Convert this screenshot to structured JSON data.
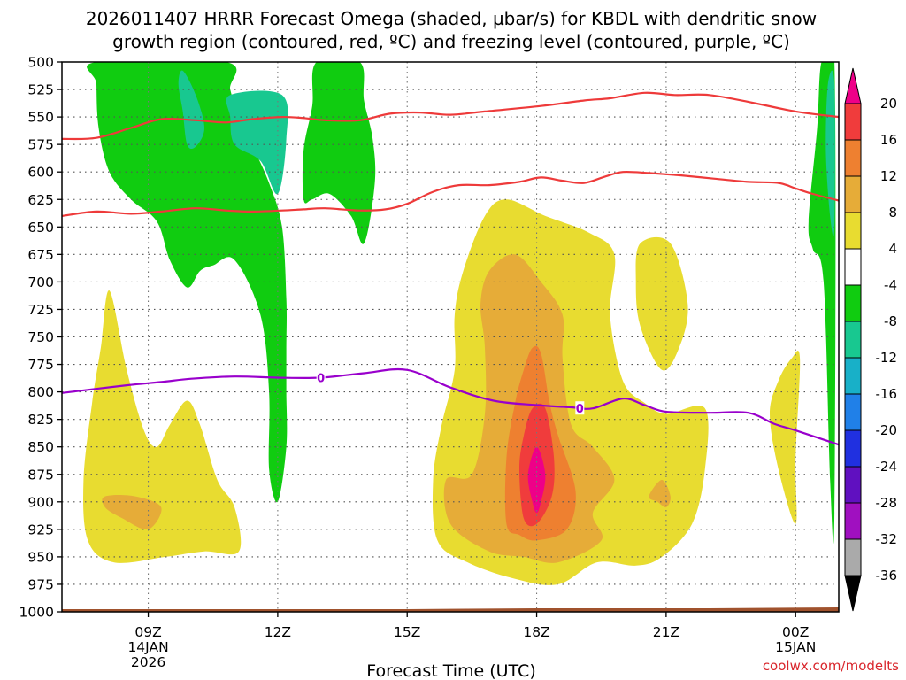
{
  "title_line1": "2026011407 HRRR Forecast Omega (shaded, µbar/s) for KBDL with dendritic snow",
  "title_line2": "growth region (contoured, red, ºC) and freezing level (contoured, purple, ºC)",
  "credit": "coolwx.com/modelts",
  "colors": {
    "dgz_contour": "#ee3a3a",
    "freezing_contour": "#9900cc",
    "ground": "#a0522d"
  },
  "chart_data": {
    "type": "heatmap",
    "title": "2026011407 HRRR Forecast Omega (shaded, µbar/s) for KBDL with dendritic snow growth region (contoured, red, ºC) and freezing level (contoured, purple, ºC)",
    "xlabel": "Forecast Time (UTC)",
    "ylabel": "",
    "xlim_hours": [
      7,
      25
    ],
    "ylim_hpa": [
      1000,
      500
    ],
    "y_ticks": [
      "500",
      "525",
      "550",
      "575",
      "600",
      "625",
      "650",
      "675",
      "700",
      "725",
      "750",
      "775",
      "800",
      "825",
      "850",
      "875",
      "900",
      "925",
      "950",
      "975",
      "1000"
    ],
    "x_ticks": [
      {
        "label": "09Z",
        "hour": 9,
        "date1": "14JAN",
        "date2": "2026"
      },
      {
        "label": "12Z",
        "hour": 12
      },
      {
        "label": "15Z",
        "hour": 15
      },
      {
        "label": "18Z",
        "hour": 18
      },
      {
        "label": "21Z",
        "hour": 21
      },
      {
        "label": "00Z",
        "hour": 24,
        "date1": "15JAN"
      }
    ],
    "colorbar": {
      "labels": [
        "20",
        "16",
        "12",
        "8",
        "4",
        "-4",
        "-8",
        "-12",
        "-16",
        "-20",
        "-24",
        "-28",
        "-32",
        "-36"
      ],
      "colors": [
        "#ee0088",
        "#f03c3c",
        "#ee8030",
        "#e6ac38",
        "#e8dc30",
        "#ffffff",
        "#10cc10",
        "#18c890",
        "#18b0c8",
        "#2080e8",
        "#2030e0",
        "#6010c0",
        "#a010c0",
        "#aaaaaa",
        "#000000"
      ]
    },
    "shaded_regions": [
      {
        "name": "green upper left",
        "omega_class": "-4 to -8",
        "color": "#10cc10",
        "points": [
          [
            7.8,
            500
          ],
          [
            10.8,
            500
          ],
          [
            10.9,
            525
          ],
          [
            11.1,
            550
          ],
          [
            11.4,
            575
          ],
          [
            11.8,
            610
          ],
          [
            12.1,
            650
          ],
          [
            12.2,
            715
          ],
          [
            12.2,
            760
          ],
          [
            12.2,
            800
          ],
          [
            12.2,
            850
          ],
          [
            12.0,
            900
          ],
          [
            11.8,
            870
          ],
          [
            11.8,
            800
          ],
          [
            11.6,
            730
          ],
          [
            11.0,
            680
          ],
          [
            10.5,
            685
          ],
          [
            10.2,
            690
          ],
          [
            9.9,
            705
          ],
          [
            9.5,
            680
          ],
          [
            9.2,
            645
          ],
          [
            8.6,
            625
          ],
          [
            8.1,
            600
          ],
          [
            7.85,
            560
          ],
          [
            7.8,
            520
          ]
        ]
      },
      {
        "name": "green upper middle",
        "omega_class": "-4 to -8",
        "color": "#10cc10",
        "points": [
          [
            12.9,
            500
          ],
          [
            13.9,
            500
          ],
          [
            14.0,
            535
          ],
          [
            14.2,
            570
          ],
          [
            14.25,
            610
          ],
          [
            14.0,
            665
          ],
          [
            13.7,
            640
          ],
          [
            13.2,
            620
          ],
          [
            12.8,
            625
          ],
          [
            12.6,
            625
          ],
          [
            12.6,
            580
          ],
          [
            12.8,
            540
          ]
        ]
      },
      {
        "name": "teal left",
        "omega_class": "-8 to -12",
        "color": "#18c890",
        "points": [
          [
            9.8,
            508
          ],
          [
            10.1,
            530
          ],
          [
            10.3,
            560
          ],
          [
            10.1,
            577
          ],
          [
            9.9,
            575
          ],
          [
            9.8,
            545
          ],
          [
            9.7,
            520
          ]
        ]
      },
      {
        "name": "teal middle",
        "omega_class": "-8 to -12",
        "color": "#18c890",
        "points": [
          [
            10.9,
            530
          ],
          [
            12.1,
            530
          ],
          [
            12.2,
            570
          ],
          [
            12.0,
            620
          ],
          [
            11.6,
            590
          ],
          [
            11.0,
            575
          ],
          [
            10.9,
            550
          ]
        ]
      },
      {
        "name": "green right edge",
        "omega_class": "-4 to -8",
        "color": "#10cc10",
        "points": [
          [
            24.6,
            500
          ],
          [
            24.9,
            500
          ],
          [
            24.9,
            910
          ],
          [
            24.8,
            880
          ],
          [
            24.65,
            700
          ],
          [
            24.4,
            670
          ],
          [
            24.3,
            645
          ],
          [
            24.5,
            560
          ]
        ]
      },
      {
        "name": "teal right edge",
        "omega_class": "-8 to -12",
        "color": "#18c890",
        "points": [
          [
            24.75,
            520
          ],
          [
            24.9,
            520
          ],
          [
            24.9,
            650
          ],
          [
            24.8,
            640
          ],
          [
            24.7,
            580
          ]
        ]
      },
      {
        "name": "yellow left",
        "omega_class": "4 to 8",
        "color": "#e8dc30",
        "points": [
          [
            8.1,
            708
          ],
          [
            8.5,
            780
          ],
          [
            8.9,
            835
          ],
          [
            9.2,
            850
          ],
          [
            9.5,
            830
          ],
          [
            9.9,
            808
          ],
          [
            10.2,
            830
          ],
          [
            10.6,
            880
          ],
          [
            11.0,
            905
          ],
          [
            11.1,
            945
          ],
          [
            10.3,
            945
          ],
          [
            9.4,
            950
          ],
          [
            8.2,
            955
          ],
          [
            7.6,
            935
          ],
          [
            7.5,
            880
          ],
          [
            7.7,
            810
          ],
          [
            7.9,
            760
          ]
        ]
      },
      {
        "name": "orange left",
        "omega_class": "8 to 12",
        "color": "#e6ac38",
        "points": [
          [
            8.0,
            895
          ],
          [
            8.7,
            895
          ],
          [
            9.3,
            905
          ],
          [
            9.0,
            925
          ],
          [
            8.4,
            915
          ],
          [
            8.0,
            905
          ]
        ]
      },
      {
        "name": "yellow right small",
        "omega_class": "4 to 8",
        "color": "#e8dc30",
        "points": [
          [
            23.9,
            770
          ],
          [
            24.1,
            770
          ],
          [
            24.0,
            860
          ],
          [
            24.0,
            920
          ],
          [
            23.6,
            870
          ],
          [
            23.4,
            820
          ],
          [
            23.6,
            790
          ]
        ]
      },
      {
        "name": "yellow late",
        "omega_class": "4 to 8",
        "color": "#e8dc30",
        "points": [
          [
            20.4,
            665
          ],
          [
            21.1,
            665
          ],
          [
            21.5,
            720
          ],
          [
            21.3,
            760
          ],
          [
            20.9,
            780
          ],
          [
            20.4,
            740
          ],
          [
            20.3,
            700
          ]
        ]
      },
      {
        "name": "yellow main",
        "omega_class": "4 to 8",
        "color": "#e8dc30",
        "points": [
          [
            16.8,
            640
          ],
          [
            17.3,
            625
          ],
          [
            18.2,
            640
          ],
          [
            19.2,
            655
          ],
          [
            19.8,
            675
          ],
          [
            19.7,
            730
          ],
          [
            20.0,
            790
          ],
          [
            20.5,
            810
          ],
          [
            21.0,
            820
          ],
          [
            21.9,
            815
          ],
          [
            21.9,
            870
          ],
          [
            21.6,
            920
          ],
          [
            20.9,
            950
          ],
          [
            20.3,
            958
          ],
          [
            19.4,
            955
          ],
          [
            18.5,
            975
          ],
          [
            17.5,
            970
          ],
          [
            16.4,
            955
          ],
          [
            15.7,
            935
          ],
          [
            15.6,
            880
          ],
          [
            15.8,
            830
          ],
          [
            16.1,
            780
          ],
          [
            16.1,
            730
          ],
          [
            16.3,
            690
          ]
        ]
      },
      {
        "name": "orange main",
        "omega_class": "8 to 12",
        "color": "#e6ac38",
        "points": [
          [
            16.9,
            690
          ],
          [
            17.5,
            675
          ],
          [
            18.1,
            700
          ],
          [
            18.6,
            730
          ],
          [
            18.6,
            770
          ],
          [
            18.8,
            830
          ],
          [
            19.3,
            850
          ],
          [
            19.8,
            880
          ],
          [
            19.3,
            910
          ],
          [
            19.5,
            935
          ],
          [
            18.5,
            955
          ],
          [
            17.7,
            950
          ],
          [
            16.9,
            945
          ],
          [
            16.0,
            920
          ],
          [
            15.9,
            880
          ],
          [
            16.5,
            875
          ],
          [
            16.8,
            820
          ],
          [
            16.8,
            760
          ],
          [
            16.7,
            720
          ]
        ]
      },
      {
        "name": "orange late small",
        "omega_class": "8 to 12",
        "color": "#e6ac38",
        "points": [
          [
            20.9,
            880
          ],
          [
            21.1,
            895
          ],
          [
            21.0,
            905
          ],
          [
            20.8,
            900
          ],
          [
            20.6,
            895
          ]
        ]
      },
      {
        "name": "dark orange main",
        "omega_class": "12 to 16",
        "color": "#ee8030",
        "points": [
          [
            17.9,
            760
          ],
          [
            18.1,
            765
          ],
          [
            18.3,
            810
          ],
          [
            18.5,
            840
          ],
          [
            18.9,
            890
          ],
          [
            18.7,
            925
          ],
          [
            18.0,
            935
          ],
          [
            17.6,
            930
          ],
          [
            17.3,
            920
          ],
          [
            17.3,
            860
          ],
          [
            17.5,
            810
          ],
          [
            17.7,
            780
          ]
        ]
      },
      {
        "name": "red core",
        "omega_class": "16 to 20",
        "color": "#f03c3c",
        "points": [
          [
            17.9,
            815
          ],
          [
            18.2,
            815
          ],
          [
            18.4,
            860
          ],
          [
            18.35,
            895
          ],
          [
            18.0,
            920
          ],
          [
            17.7,
            915
          ],
          [
            17.6,
            870
          ],
          [
            17.7,
            840
          ]
        ]
      },
      {
        "name": "magenta core",
        "omega_class": "above 20",
        "color": "#ee0088",
        "points": [
          [
            18.0,
            850
          ],
          [
            18.2,
            875
          ],
          [
            18.1,
            900
          ],
          [
            18.0,
            910
          ],
          [
            17.9,
            900
          ],
          [
            17.8,
            875
          ]
        ]
      }
    ],
    "dgz_contours": [
      {
        "name": "dgz upper line",
        "points": [
          [
            7,
            570
          ],
          [
            7.8,
            569
          ],
          [
            8.6,
            560
          ],
          [
            9.3,
            552
          ],
          [
            10.1,
            553
          ],
          [
            10.8,
            555
          ],
          [
            11.4,
            552
          ],
          [
            12.1,
            550
          ],
          [
            12.6,
            551
          ],
          [
            13.1,
            553
          ],
          [
            13.9,
            553
          ],
          [
            14.6,
            547
          ],
          [
            15.3,
            546
          ],
          [
            16.0,
            548
          ],
          [
            16.8,
            545
          ],
          [
            18.1,
            540
          ],
          [
            19.1,
            535
          ],
          [
            19.7,
            533
          ],
          [
            20.5,
            528
          ],
          [
            21.2,
            530
          ],
          [
            22.0,
            530
          ],
          [
            23.0,
            537
          ],
          [
            24.0,
            545
          ],
          [
            25.0,
            550
          ]
        ]
      },
      {
        "name": "dgz lower line",
        "points": [
          [
            7,
            640
          ],
          [
            7.8,
            636
          ],
          [
            8.6,
            638
          ],
          [
            9.3,
            636
          ],
          [
            10.1,
            633
          ],
          [
            10.8,
            635
          ],
          [
            11.4,
            636
          ],
          [
            12.1,
            635
          ],
          [
            12.6,
            634
          ],
          [
            13.1,
            633
          ],
          [
            13.9,
            635
          ],
          [
            14.5,
            634
          ],
          [
            15.0,
            629
          ],
          [
            15.6,
            618
          ],
          [
            16.2,
            612
          ],
          [
            16.9,
            612
          ],
          [
            17.6,
            609
          ],
          [
            18.1,
            605
          ],
          [
            18.6,
            608
          ],
          [
            19.1,
            610
          ],
          [
            19.6,
            604
          ],
          [
            20.0,
            600
          ],
          [
            20.6,
            601
          ],
          [
            21.3,
            603
          ],
          [
            22.1,
            606
          ],
          [
            22.9,
            609
          ],
          [
            23.6,
            610
          ],
          [
            24.0,
            615
          ],
          [
            24.4,
            620
          ],
          [
            25.0,
            626
          ]
        ]
      }
    ],
    "freezing_contours": [
      {
        "name": "freezing level",
        "label": "0",
        "label_at": [
          [
            13.0,
            787
          ],
          [
            19.0,
            815
          ]
        ],
        "points": [
          [
            7,
            801
          ],
          [
            8.5,
            794
          ],
          [
            9.3,
            791
          ],
          [
            10.0,
            788
          ],
          [
            11.0,
            786
          ],
          [
            12.0,
            787
          ],
          [
            13.0,
            787
          ],
          [
            14.0,
            783
          ],
          [
            15.0,
            780
          ],
          [
            16.0,
            796
          ],
          [
            17.0,
            808
          ],
          [
            18.0,
            812
          ],
          [
            18.8,
            814
          ],
          [
            19.3,
            815
          ],
          [
            20.0,
            806
          ],
          [
            20.5,
            812
          ],
          [
            21.0,
            818
          ],
          [
            22.0,
            819
          ],
          [
            22.9,
            819
          ],
          [
            23.5,
            829
          ],
          [
            24.0,
            835
          ],
          [
            25.0,
            848
          ]
        ]
      }
    ],
    "terrain": {
      "name": "ground surface",
      "pressure_hpa_start": 1000,
      "pressure_hpa_end": 996
    }
  }
}
